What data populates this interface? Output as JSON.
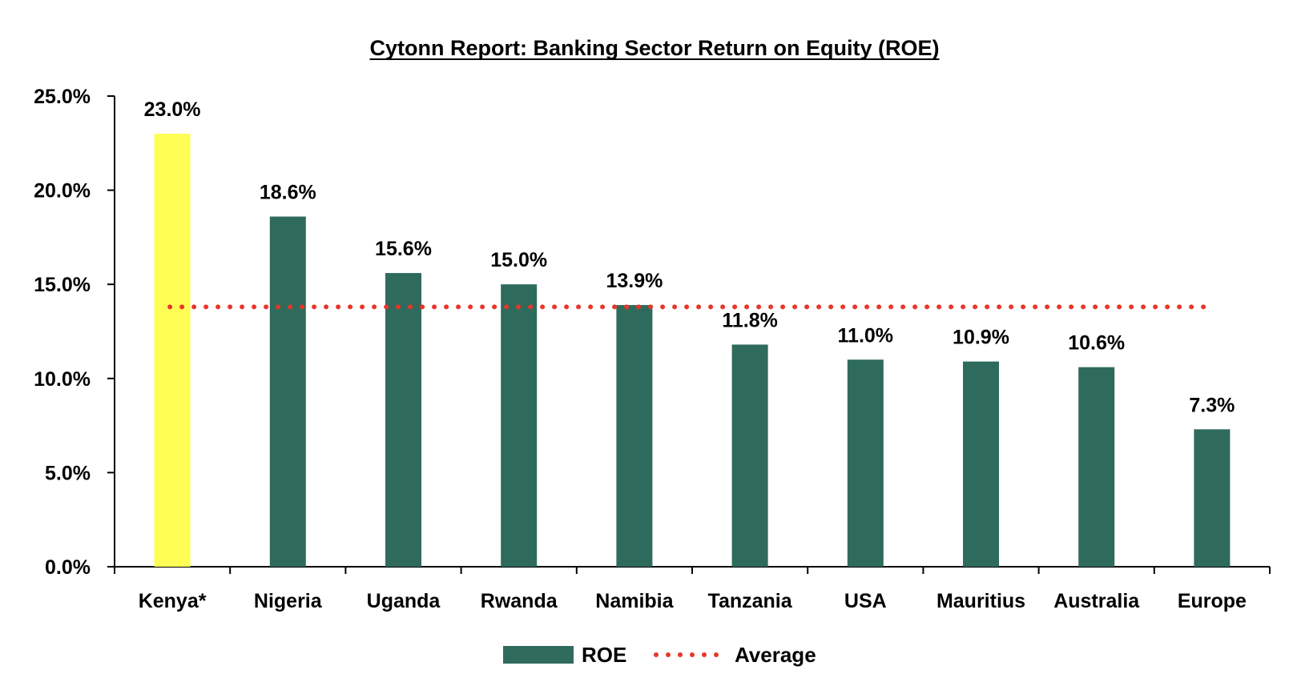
{
  "chart_data": {
    "type": "bar",
    "title": "Cytonn Report: Banking Sector Return on Equity (ROE)",
    "xlabel": "",
    "ylabel": "",
    "categories": [
      "Kenya*",
      "Nigeria",
      "Uganda",
      "Rwanda",
      "Namibia",
      "Tanzania",
      "USA",
      "Mauritius",
      "Australia",
      "Europe"
    ],
    "series": [
      {
        "name": "ROE",
        "values": [
          23.0,
          18.6,
          15.6,
          15.0,
          13.9,
          11.8,
          11.0,
          10.9,
          10.6,
          7.3
        ],
        "data_labels": [
          "23.0%",
          "18.6%",
          "15.6%",
          "15.0%",
          "13.9%",
          "11.8%",
          "11.0%",
          "10.9%",
          "10.6%",
          "7.3%"
        ],
        "color": "#2e6b5c",
        "highlight_index": 0,
        "highlight_color": "#fffe54"
      },
      {
        "name": "Average",
        "type": "line",
        "style": "dotted",
        "value": 13.8,
        "color": "#e8362a"
      }
    ],
    "ylim": [
      0,
      25
    ],
    "yticks": [
      0,
      5,
      10,
      15,
      20,
      25
    ],
    "ytick_labels": [
      "0.0%",
      "5.0%",
      "10.0%",
      "15.0%",
      "20.0%",
      "25.0%"
    ],
    "grid": false,
    "legend_position": "bottom-center"
  }
}
